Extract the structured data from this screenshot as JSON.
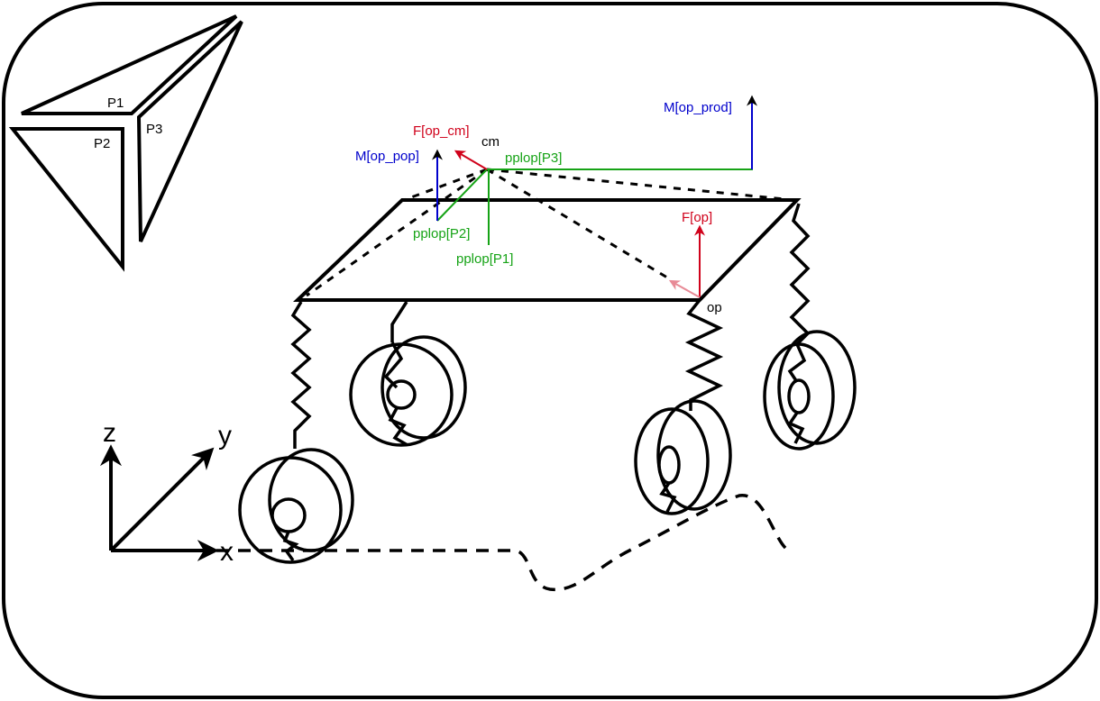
{
  "labels": {
    "p1": "P1",
    "p2": "P2",
    "p3": "P3",
    "cm": "cm",
    "op": "op",
    "f_op_cm": "F[op_cm]",
    "m_op_pop": "M[op_pop]",
    "m_op_prod": "M[op_prod]",
    "f_op": "F[op]",
    "pplop_p1": "pplop[P1]",
    "pplop_p2": "pplop[P2]",
    "pplop_p3": "pplop[P3]"
  },
  "axes": {
    "x": "x",
    "y": "y",
    "z": "z"
  },
  "colors": {
    "force": "#d0021b",
    "moment": "#0000cc",
    "position": "#16a316",
    "outline": "#000000"
  }
}
